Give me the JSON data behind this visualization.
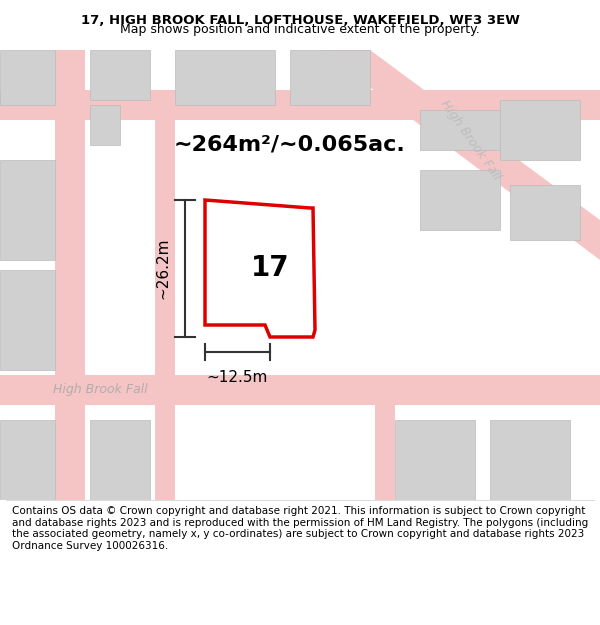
{
  "title_line1": "17, HIGH BROOK FALL, LOFTHOUSE, WAKEFIELD, WF3 3EW",
  "title_line2": "Map shows position and indicative extent of the property.",
  "footer_text": "Contains OS data © Crown copyright and database right 2021. This information is subject to Crown copyright and database rights 2023 and is reproduced with the permission of HM Land Registry. The polygons (including the associated geometry, namely x, y co-ordinates) are subject to Crown copyright and database rights 2023 Ordnance Survey 100026316.",
  "area_label": "~264m²/~0.065ac.",
  "property_number": "17",
  "dim_height": "~26.2m",
  "dim_width": "~12.5m",
  "road_label_left": "High Brook Fall",
  "road_label_right": "High Brook Fall",
  "bg_color": "#f5f5f5",
  "map_bg": "#f0eeee",
  "plot_color": "#ffffff",
  "plot_edge_color": "#dd0000",
  "road_color": "#f5c5c5",
  "building_color": "#d8d8d8",
  "dim_color": "#333333",
  "title_fontsize": 9.5,
  "footer_fontsize": 7.5
}
